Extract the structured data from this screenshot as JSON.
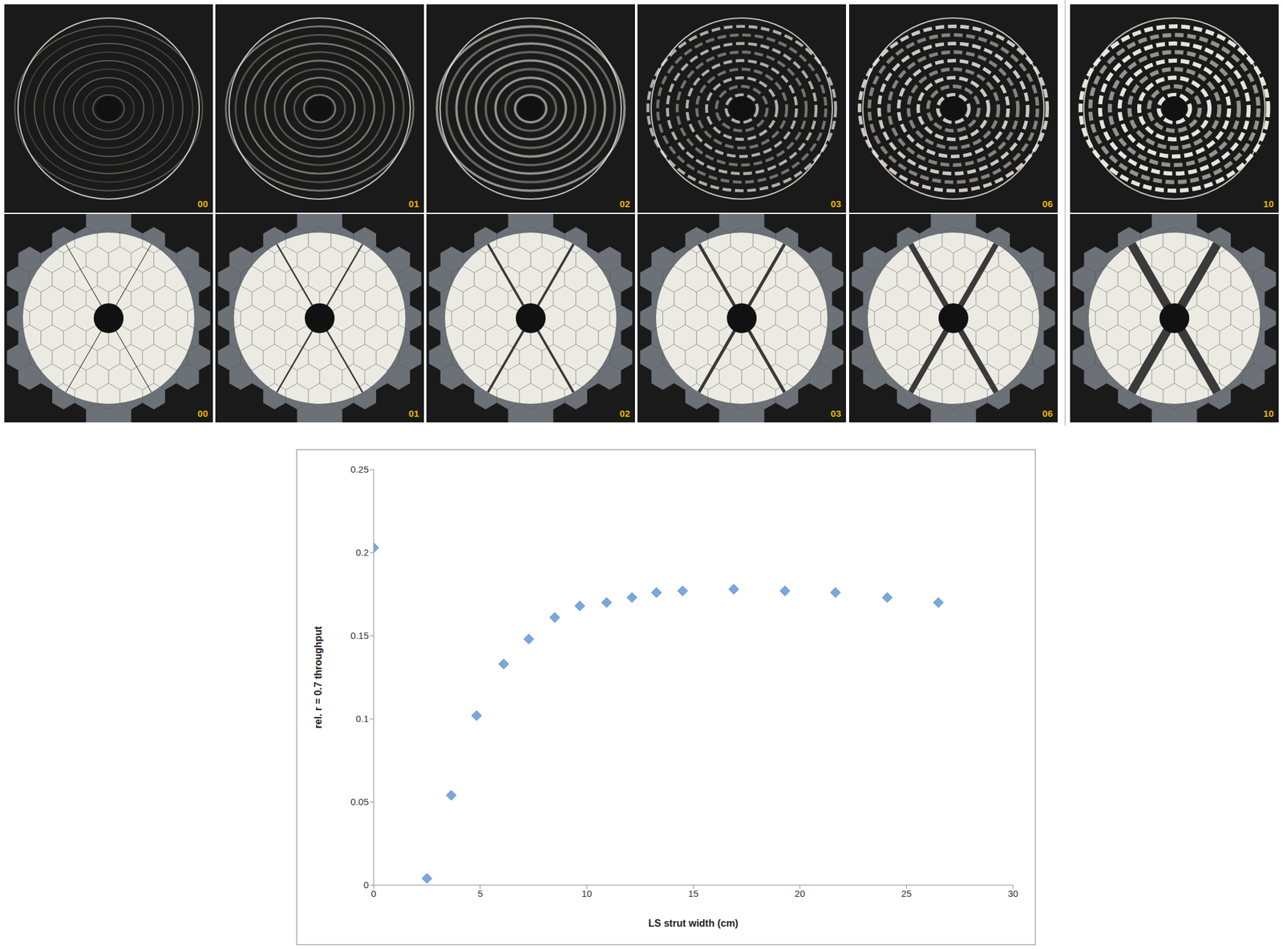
{
  "image_panels": {
    "psf_row_labels": [
      "00",
      "01",
      "02",
      "03",
      "06",
      "10"
    ],
    "pupil_row_labels": [
      "00",
      "01",
      "02",
      "03",
      "06",
      "10"
    ]
  },
  "chart_data": {
    "type": "scatter",
    "x_label": "LS strut width (cm)",
    "y_label": "rel. r = 0.7 throughput",
    "x": [
      0,
      2.5,
      3.64,
      4.83,
      6.1,
      7.28,
      8.5,
      9.67,
      10.93,
      12.12,
      13.27,
      14.5,
      16.9,
      19.3,
      21.67,
      24.1,
      26.5
    ],
    "values": [
      0.203,
      0.004,
      0.054,
      0.102,
      0.133,
      0.148,
      0.161,
      0.168,
      0.17,
      0.173,
      0.176,
      0.177,
      0.178,
      0.177,
      0.176,
      0.173,
      0.17
    ],
    "xlim": [
      0,
      30
    ],
    "xticks": [
      0,
      5,
      10,
      15,
      20,
      25,
      30
    ],
    "ylim": [
      0,
      0.25
    ],
    "yticks": [
      0,
      0.05,
      0.1,
      0.15,
      0.2,
      0.25
    ],
    "color": "#7ba7dc",
    "marker": "diamond",
    "grid": false
  }
}
